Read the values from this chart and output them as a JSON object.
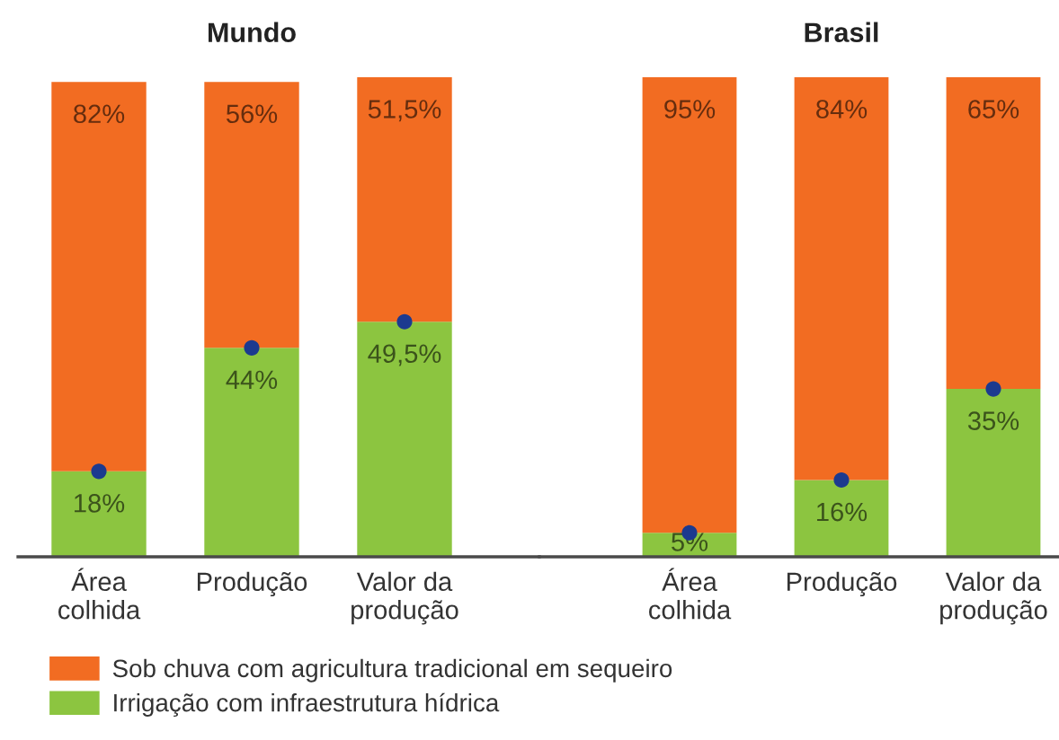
{
  "chart_data": [
    {
      "type": "bar",
      "title": "Mundo",
      "categories": [
        "Área\ncolhida",
        "Produção",
        "Valor da\nprodução"
      ],
      "stacked": true,
      "tick_labels": "x",
      "legend": "bottom",
      "series": [
        {
          "name": "Irrigação com infraestrutura hídrica",
          "color": "#8cc540",
          "values": [
            18,
            44,
            49.5
          ],
          "value_labels": [
            "18%",
            "44%",
            "49,5%"
          ]
        },
        {
          "name": "Sob chuva com agricultura tradicional em sequeiro",
          "color": "#f26c22",
          "values": [
            82,
            56,
            51.5
          ],
          "value_labels": [
            "82%",
            "56%",
            "51,5%"
          ]
        },
        {
          "type": "scatter",
          "color": "#1c3a8f",
          "marker": "circle",
          "x": [
            "Área\ncolhida",
            "Produção",
            "Valor da\nprodução"
          ],
          "values": [
            18,
            44,
            49.5
          ]
        }
      ]
    },
    {
      "type": "bar",
      "title": "Brasil",
      "categories": [
        "Área\ncolhida",
        "Produção",
        "Valor da\nprodução"
      ],
      "stacked": true,
      "tick_labels": "x",
      "series": [
        {
          "color": "#8cc540",
          "values": [
            5,
            16,
            35
          ],
          "value_labels": [
            "5%",
            "16%",
            "35%"
          ]
        },
        {
          "color": "#f26c22",
          "values": [
            95,
            84,
            65
          ],
          "value_labels": [
            "95%",
            "84%",
            "65%"
          ]
        },
        {
          "type": "scatter",
          "color": "#1c3a8f",
          "marker": "circle",
          "x": [
            "Área\ncolhida",
            "Produção",
            "Valor da\nprodução"
          ],
          "values": [
            5,
            16,
            35
          ]
        }
      ]
    }
  ]
}
